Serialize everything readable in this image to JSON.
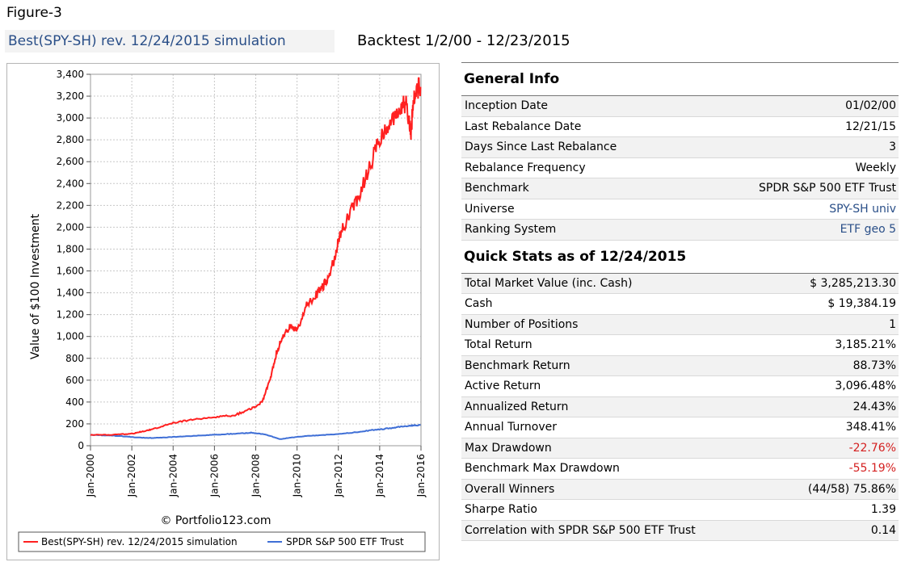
{
  "figure_label": "Figure-3",
  "sim_title": "Best(SPY-SH) rev. 12/24/2015 simulation",
  "backtest_label": "Backtest 1/2/00 - 12/23/2015",
  "general_info": {
    "heading": "General Info",
    "rows": [
      {
        "label": "Inception Date",
        "value": "01/02/00"
      },
      {
        "label": "Last Rebalance Date",
        "value": "12/21/15"
      },
      {
        "label": "Days Since Last Rebalance",
        "value": "3"
      },
      {
        "label": "Rebalance Frequency",
        "value": "Weekly"
      },
      {
        "label": "Benchmark",
        "value": "SPDR S&P 500 ETF Trust"
      },
      {
        "label": "Universe",
        "value": "SPY-SH univ"
      },
      {
        "label": "Ranking System",
        "value": "ETF geo 5"
      }
    ]
  },
  "quick_stats": {
    "heading": "Quick Stats as of 12/24/2015",
    "rows": [
      {
        "label": "Total Market Value (inc. Cash)",
        "value": "$ 3,285,213.30"
      },
      {
        "label": "Cash",
        "value": "$ 19,384.19"
      },
      {
        "label": "Number of Positions",
        "value": "1"
      },
      {
        "label": "Total Return",
        "value": "3,185.21%"
      },
      {
        "label": "Benchmark Return",
        "value": "88.73%"
      },
      {
        "label": "Active Return",
        "value": "3,096.48%"
      },
      {
        "label": "Annualized Return",
        "value": "24.43%"
      },
      {
        "label": "Annual Turnover",
        "value": "348.41%"
      },
      {
        "label": "Max Drawdown",
        "value": "-22.76%"
      },
      {
        "label": "Benchmark Max Drawdown",
        "value": "-55.19%"
      },
      {
        "label": "Overall Winners",
        "value": "(44/58) 75.86%"
      },
      {
        "label": "Sharpe Ratio",
        "value": "1.39"
      },
      {
        "label": "Correlation with SPDR S&P 500 ETF Trust",
        "value": "0.14"
      }
    ]
  },
  "colors": {
    "strategy": "#ff2020",
    "benchmark": "#3f6fd6",
    "link": "#2a4f88",
    "negative": "#d42020"
  },
  "chart_data": {
    "type": "line",
    "ylabel": "Value of $100 Investment",
    "xlabel": "",
    "ylim": [
      0,
      3400
    ],
    "xlim": [
      2000,
      2016
    ],
    "yticks": [
      0,
      200,
      400,
      600,
      800,
      1000,
      1200,
      1400,
      1600,
      1800,
      2000,
      2200,
      2400,
      2600,
      2800,
      3000,
      3200,
      3400
    ],
    "ytick_labels": [
      "0",
      "200",
      "400",
      "600",
      "800",
      "1,000",
      "1,200",
      "1,400",
      "1,600",
      "1,800",
      "2,000",
      "2,200",
      "2,400",
      "2,600",
      "2,800",
      "3,000",
      "3,200",
      "3,400"
    ],
    "xticks": [
      2000,
      2002,
      2004,
      2006,
      2008,
      2010,
      2012,
      2014,
      2016
    ],
    "xtick_labels": [
      "Jan-2000",
      "Jan-2002",
      "Jan-2004",
      "Jan-2006",
      "Jan-2008",
      "Jan-2010",
      "Jan-2012",
      "Jan-2014",
      "Jan-2016"
    ],
    "credit": "© Portfolio123.com",
    "legend_position": "bottom",
    "grid": true,
    "series": [
      {
        "name": "Best(SPY-SH) rev. 12/24/2015 simulation",
        "x": [
          2000.0,
          2001.0,
          2002.0,
          2002.5,
          2003.0,
          2004.0,
          2005.0,
          2006.0,
          2007.0,
          2007.8,
          2008.3,
          2008.7,
          2009.0,
          2009.3,
          2009.7,
          2010.0,
          2010.5,
          2011.0,
          2011.4,
          2011.8,
          2012.0,
          2012.5,
          2013.0,
          2013.5,
          2014.0,
          2014.5,
          2015.0,
          2015.3,
          2015.5,
          2015.7,
          2015.98
        ],
        "y": [
          100,
          100,
          110,
          130,
          150,
          210,
          240,
          260,
          280,
          340,
          400,
          600,
          850,
          1000,
          1100,
          1050,
          1300,
          1400,
          1500,
          1700,
          1900,
          2100,
          2300,
          2550,
          2800,
          2950,
          3100,
          3150,
          2850,
          3250,
          3285
        ]
      },
      {
        "name": "SPDR S&P 500 ETF Trust",
        "x": [
          2000.0,
          2000.7,
          2001.5,
          2002.0,
          2002.8,
          2003.5,
          2004.5,
          2005.5,
          2006.5,
          2007.5,
          2007.8,
          2008.5,
          2009.2,
          2009.7,
          2010.5,
          2011.5,
          2012.5,
          2013.5,
          2014.5,
          2015.0,
          2015.5,
          2015.98
        ],
        "y": [
          100,
          95,
          88,
          80,
          70,
          75,
          85,
          95,
          105,
          115,
          120,
          100,
          60,
          75,
          90,
          100,
          115,
          140,
          160,
          175,
          185,
          189
        ]
      }
    ]
  }
}
